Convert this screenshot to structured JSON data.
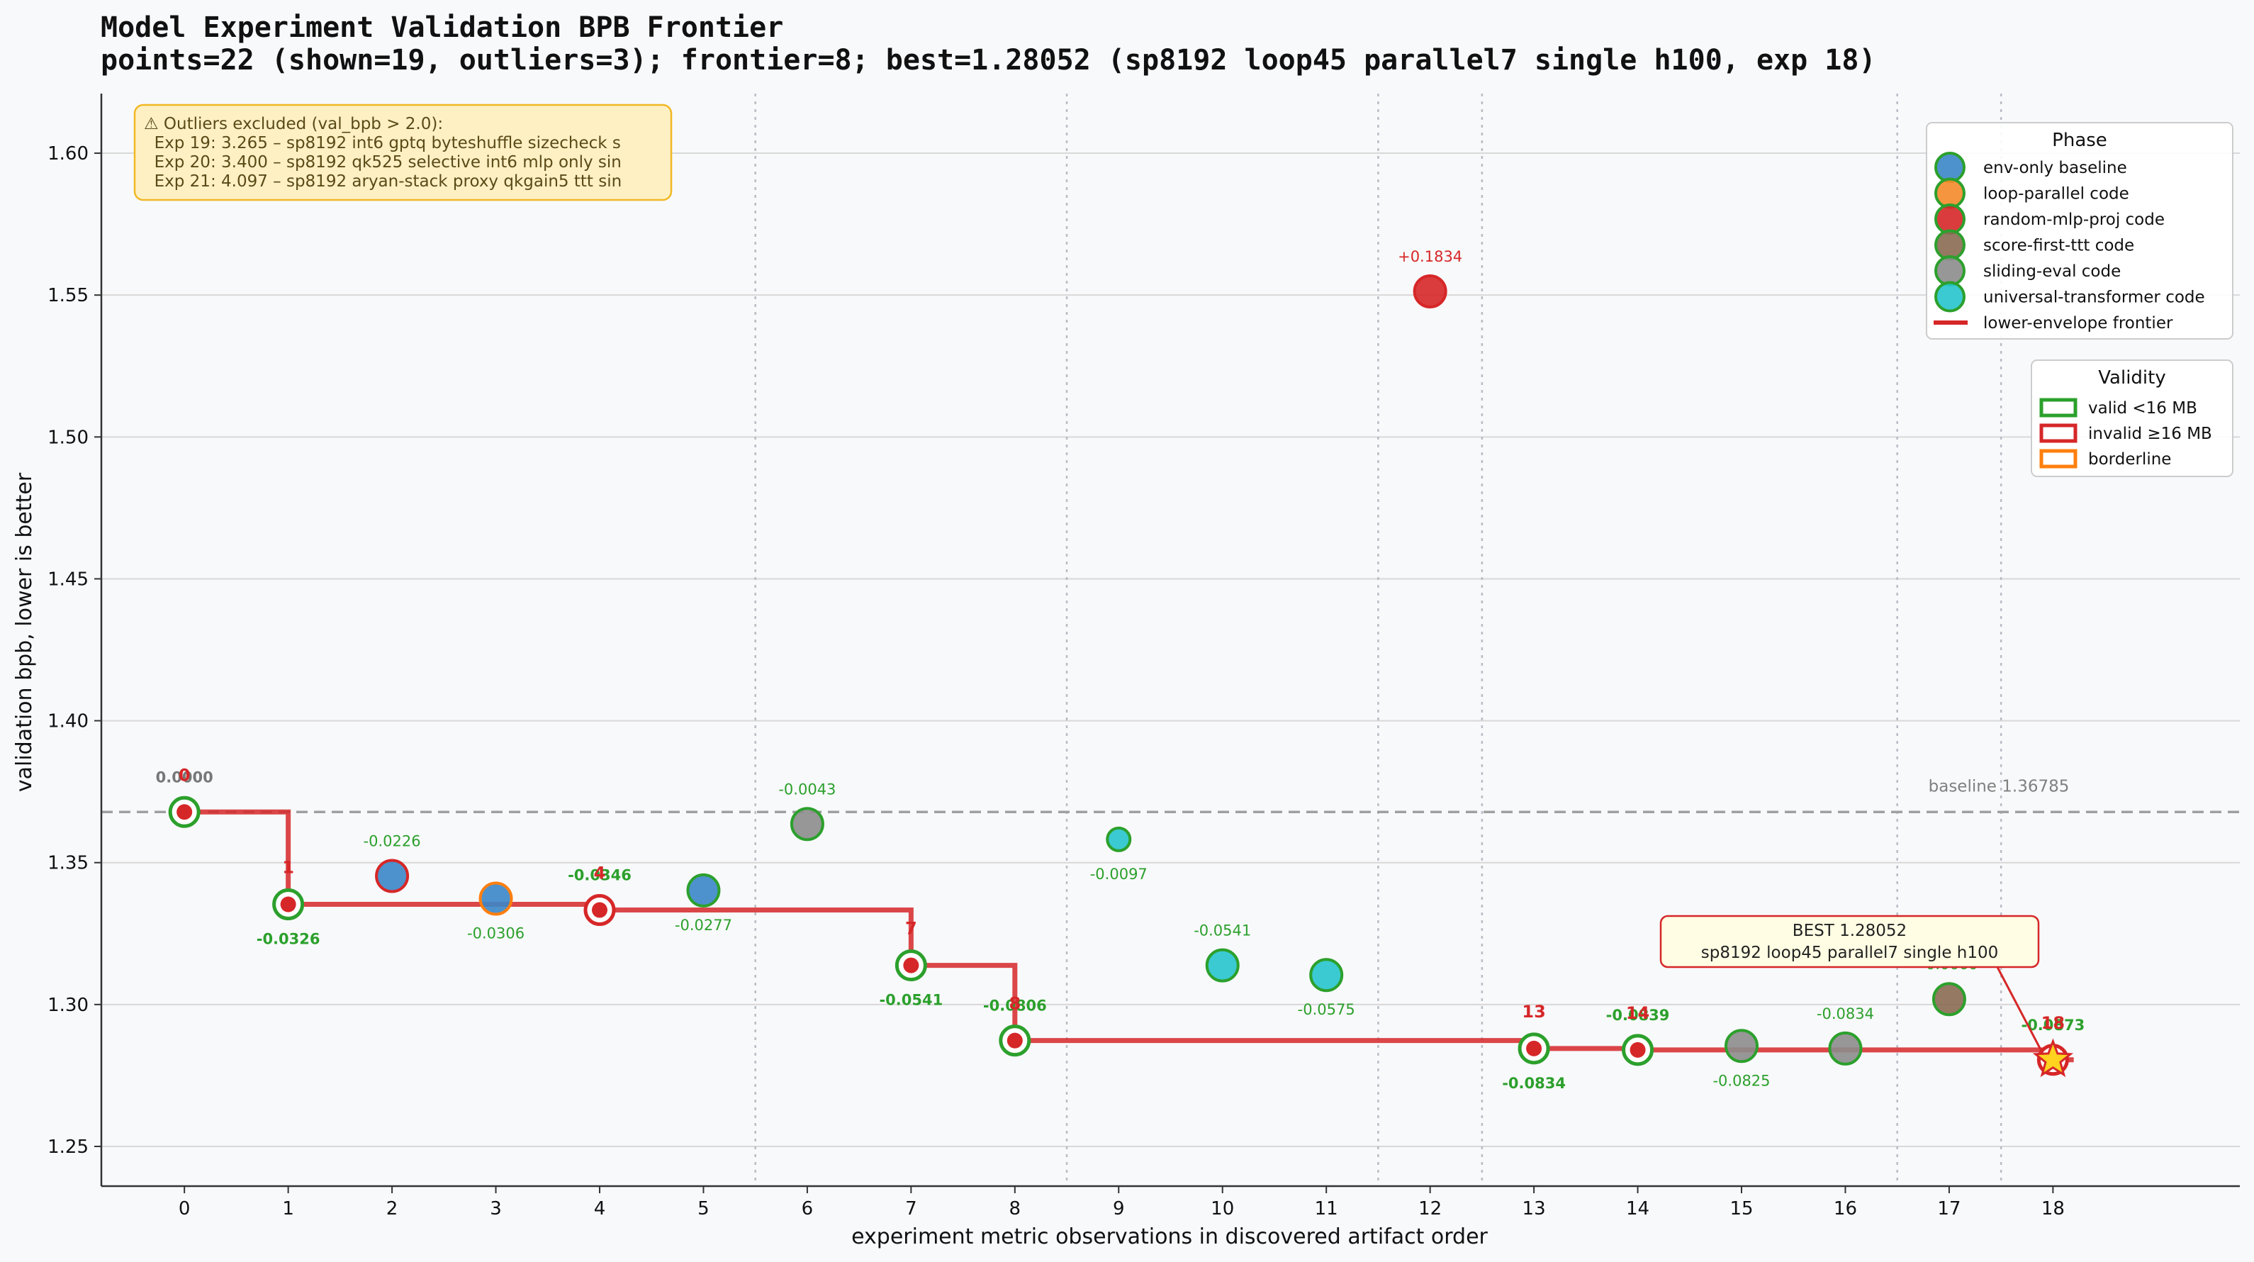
{
  "chart_data": {
    "type": "scatter",
    "title": "Model Experiment Validation BPB Frontier",
    "subtitle": "points=22 (shown=19, outliers=3); frontier=8; best=1.28052 (sp8192 loop45 parallel7 single h100, exp 18)",
    "xlabel": "experiment metric observations in discovered artifact order",
    "ylabel": "validation bpb, lower is better",
    "xlim": [
      -0.8,
      19.8
    ],
    "ylim": [
      1.236,
      1.621
    ],
    "x_ticks": [
      0,
      1,
      2,
      3,
      4,
      5,
      6,
      7,
      8,
      9,
      10,
      11,
      12,
      13,
      14,
      15,
      16,
      17,
      18
    ],
    "y_ticks": [
      1.25,
      1.3,
      1.35,
      1.4,
      1.45,
      1.5,
      1.55,
      1.6
    ],
    "y_tick_labels": [
      "1.25",
      "1.30",
      "1.35",
      "1.40",
      "1.45",
      "1.50",
      "1.55",
      "1.60"
    ],
    "grid": "horizontal",
    "phase_boundaries": [
      5.5,
      8.5,
      11.5,
      12.5,
      16.5,
      17.5
    ],
    "baseline": {
      "value": 1.36785,
      "label": "baseline 1.36785"
    },
    "colors": {
      "env-only baseline": "#3a86c8",
      "loop-parallel code": "#f5892a",
      "random-mlp-proj code": "#d62728",
      "score-first-ttt code": "#8a6a52",
      "sliding-eval code": "#8c8c8c",
      "universal-transformer code": "#26c4cc",
      "frontier": "#d62728",
      "valid": "#2ca02c",
      "invalid": "#d62728",
      "borderline": "#ff7f0e",
      "delta_positive": "#d62728",
      "delta_negative": "#2ca02c",
      "delta_zero": "#777777"
    },
    "points": [
      {
        "x": 0,
        "y": 1.36785,
        "phase": "env-only baseline",
        "validity": "valid",
        "delta": "0.0000",
        "frontier": true
      },
      {
        "x": 1,
        "y": 1.3353,
        "phase": "env-only baseline",
        "validity": "valid",
        "delta": "-0.0326",
        "frontier": true
      },
      {
        "x": 2,
        "y": 1.3453,
        "phase": "env-only baseline",
        "validity": "invalid",
        "delta": "-0.0226",
        "frontier": false
      },
      {
        "x": 3,
        "y": 1.3373,
        "phase": "env-only baseline",
        "validity": "borderline",
        "delta": "-0.0306",
        "frontier": false
      },
      {
        "x": 4,
        "y": 1.3333,
        "phase": "env-only baseline",
        "validity": "invalid",
        "delta": "-0.0346",
        "frontier": true
      },
      {
        "x": 5,
        "y": 1.3402,
        "phase": "env-only baseline",
        "validity": "valid",
        "delta": "-0.0277",
        "frontier": false
      },
      {
        "x": 6,
        "y": 1.3636,
        "phase": "sliding-eval code",
        "validity": "valid",
        "delta": "-0.0043",
        "frontier": false
      },
      {
        "x": 7,
        "y": 1.3138,
        "phase": "universal-transformer code",
        "validity": "valid",
        "delta": "-0.0541",
        "frontier": true
      },
      {
        "x": 8,
        "y": 1.2873,
        "phase": "universal-transformer code",
        "validity": "valid",
        "delta": "-0.0806",
        "frontier": true
      },
      {
        "x": 9,
        "y": 1.3582,
        "phase": "universal-transformer code",
        "validity": "valid",
        "delta": "-0.0097",
        "frontier": false
      },
      {
        "x": 10,
        "y": 1.3138,
        "phase": "universal-transformer code",
        "validity": "valid",
        "delta": "-0.0541",
        "frontier": false
      },
      {
        "x": 11,
        "y": 1.3104,
        "phase": "universal-transformer code",
        "validity": "valid",
        "delta": "-0.0575",
        "frontier": false
      },
      {
        "x": 12,
        "y": 1.5513,
        "phase": "random-mlp-proj code",
        "validity": "invalid",
        "delta": "+0.1834",
        "frontier": false
      },
      {
        "x": 13,
        "y": 1.2845,
        "phase": "sliding-eval code",
        "validity": "valid",
        "delta": "-0.0834",
        "frontier": true
      },
      {
        "x": 14,
        "y": 1.284,
        "phase": "sliding-eval code",
        "validity": "valid",
        "delta": "-0.0839",
        "frontier": true
      },
      {
        "x": 15,
        "y": 1.2854,
        "phase": "sliding-eval code",
        "validity": "valid",
        "delta": "-0.0825",
        "frontier": false
      },
      {
        "x": 16,
        "y": 1.2845,
        "phase": "sliding-eval code",
        "validity": "valid",
        "delta": "-0.0834",
        "frontier": false
      },
      {
        "x": 17,
        "y": 1.3019,
        "phase": "score-first-ttt code",
        "validity": "valid",
        "delta": "-0.0660",
        "frontier": false
      },
      {
        "x": 18,
        "y": 1.28052,
        "phase": "loop-parallel code",
        "validity": "invalid",
        "delta": "-0.0873",
        "frontier": true
      }
    ],
    "frontier_labels": [
      {
        "x": 0,
        "text": "0"
      },
      {
        "x": 1,
        "text": "1"
      },
      {
        "x": 4,
        "text": "4"
      },
      {
        "x": 7,
        "text": "7"
      },
      {
        "x": 8,
        "text": "8"
      },
      {
        "x": 13,
        "text": "13"
      },
      {
        "x": 14,
        "text": "14"
      },
      {
        "x": 18,
        "text": "18"
      }
    ],
    "frontier_path": {
      "x_end": 18.2
    },
    "best": {
      "x": 18,
      "y": 1.28052,
      "label_line1": "BEST  1.28052",
      "label_line2": "sp8192 loop45 parallel7 single h100"
    },
    "outlier_box": {
      "lines": [
        "⚠ Outliers excluded (val_bpb > 2.0):",
        "  Exp 19: 3.265 – sp8192 int6 gptq byteshuffle sizecheck s",
        "  Exp 20: 3.400 – sp8192 qk525 selective int6 mlp only sin",
        "  Exp 21: 4.097 – sp8192 aryan-stack proxy qkgain5 ttt sin"
      ]
    },
    "legend_phase": {
      "title": "Phase",
      "placement": "top-right",
      "items": [
        "env-only baseline",
        "loop-parallel code",
        "random-mlp-proj code",
        "score-first-ttt code",
        "sliding-eval code",
        "universal-transformer code",
        "lower-envelope frontier"
      ]
    },
    "legend_validity": {
      "title": "Validity",
      "items": [
        {
          "label": "valid <16 MB",
          "key": "valid"
        },
        {
          "label": "invalid ≥16 MB",
          "key": "invalid"
        },
        {
          "label": "borderline",
          "key": "borderline"
        }
      ]
    }
  }
}
